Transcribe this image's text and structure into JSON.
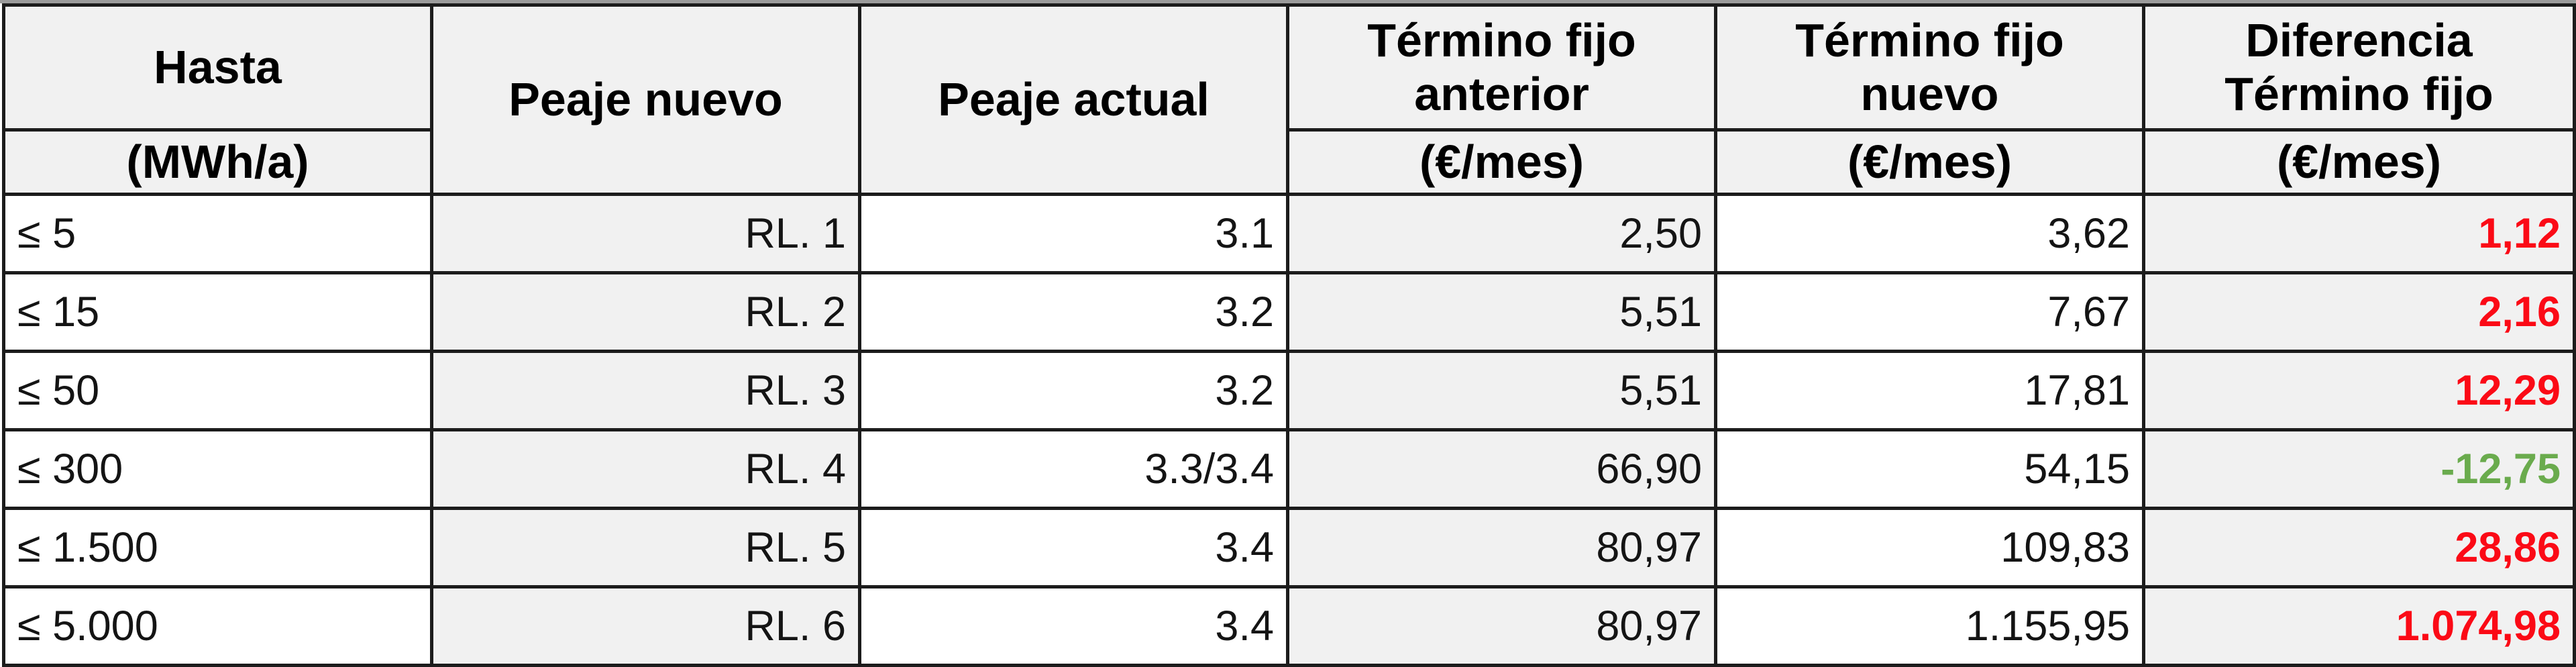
{
  "colors": {
    "increase": "#fb0a16",
    "decrease": "#6aab4d",
    "shaded_cell": "#f1f1f1",
    "border": "#1c1c1c",
    "top_edge": "#9b9b9b"
  },
  "table": {
    "columns": [
      {
        "header": "Hasta",
        "subheader": "(MWh/a)"
      },
      {
        "header": "Peaje nuevo",
        "subheader": ""
      },
      {
        "header": "Peaje actual",
        "subheader": ""
      },
      {
        "header": "Término fijo anterior",
        "subheader": "(€/mes)"
      },
      {
        "header": "Término fijo nuevo",
        "subheader": "(€/mes)"
      },
      {
        "header": "Diferencia Término fijo",
        "subheader": "(€/mes)"
      }
    ],
    "rows": [
      {
        "hasta": "≤ 5",
        "peaje_nuevo": "RL. 1",
        "peaje_actual": "3.1",
        "termino_fijo_anterior": "2,50",
        "termino_fijo_nuevo": "3,62",
        "diferencia": "1,12",
        "trend": "increase"
      },
      {
        "hasta": "≤ 15",
        "peaje_nuevo": "RL. 2",
        "peaje_actual": "3.2",
        "termino_fijo_anterior": "5,51",
        "termino_fijo_nuevo": "7,67",
        "diferencia": "2,16",
        "trend": "increase"
      },
      {
        "hasta": "≤ 50",
        "peaje_nuevo": "RL. 3",
        "peaje_actual": "3.2",
        "termino_fijo_anterior": "5,51",
        "termino_fijo_nuevo": "17,81",
        "diferencia": "12,29",
        "trend": "increase"
      },
      {
        "hasta": "≤ 300",
        "peaje_nuevo": "RL. 4",
        "peaje_actual": "3.3/3.4",
        "termino_fijo_anterior": "66,90",
        "termino_fijo_nuevo": "54,15",
        "diferencia": "-12,75",
        "trend": "decrease"
      },
      {
        "hasta": "≤ 1.500",
        "peaje_nuevo": "RL. 5",
        "peaje_actual": "3.4",
        "termino_fijo_anterior": "80,97",
        "termino_fijo_nuevo": "109,83",
        "diferencia": "28,86",
        "trend": "increase"
      },
      {
        "hasta": "≤ 5.000",
        "peaje_nuevo": "RL. 6",
        "peaje_actual": "3.4",
        "termino_fijo_anterior": "80,97",
        "termino_fijo_nuevo": "1.155,95",
        "diferencia": "1.074,98",
        "trend": "increase"
      }
    ]
  }
}
